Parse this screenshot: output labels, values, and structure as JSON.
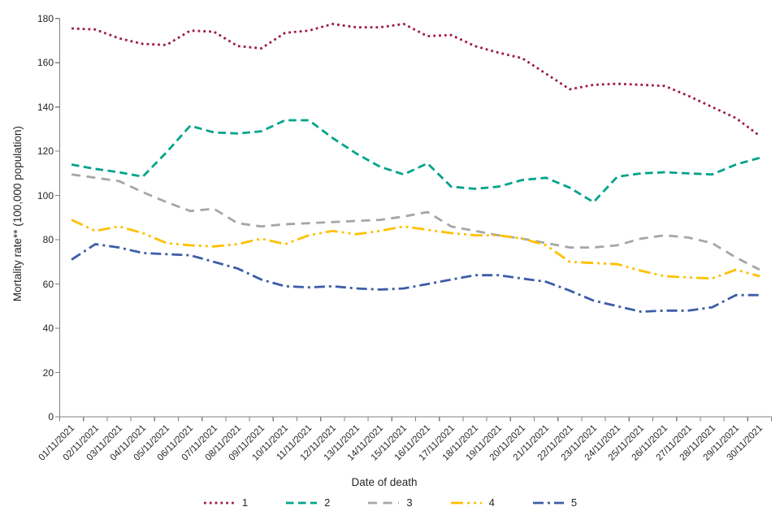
{
  "chart_data": {
    "type": "line",
    "title": "",
    "xlabel": "Date of death",
    "ylabel": "Mortality rate** (100,000 population)",
    "ylim": [
      0,
      180
    ],
    "yticks": [
      0,
      20,
      40,
      60,
      80,
      100,
      120,
      140,
      160,
      180
    ],
    "grid": false,
    "legend_position": "bottom-center",
    "axis_color": "#808080",
    "text_color": "#262626",
    "x": [
      "01/11/2021",
      "02/11/2021",
      "03/11/2021",
      "04/11/2021",
      "05/11/2021",
      "06/11/2021",
      "07/11/2021",
      "08/11/2021",
      "09/11/2021",
      "10/11/2021",
      "11/11/2021",
      "12/11/2021",
      "13/11/2021",
      "14/11/2021",
      "15/11/2021",
      "16/11/2021",
      "17/11/2021",
      "18/11/2021",
      "19/11/2021",
      "20/11/2021",
      "21/11/2021",
      "22/11/2021",
      "23/11/2021",
      "24/11/2021",
      "25/11/2021",
      "26/11/2021",
      "27/11/2021",
      "28/11/2021",
      "29/11/2021",
      "30/11/2021"
    ],
    "series": [
      {
        "name": "1",
        "color": "#9B1B4B",
        "dash": "dot",
        "values": [
          175.5,
          175,
          171,
          168.5,
          168,
          174.5,
          174,
          167.5,
          166.5,
          173.5,
          174.5,
          177.5,
          176,
          176,
          177.5,
          172,
          172.5,
          167.5,
          164.5,
          162,
          155,
          148,
          150,
          150.5,
          150,
          149.5,
          145,
          140,
          135,
          127
        ]
      },
      {
        "name": "2",
        "color": "#00A38B",
        "dash": "dash",
        "values": [
          114,
          112,
          110.5,
          108.5,
          119.5,
          131.5,
          128.5,
          128,
          129,
          134,
          134,
          126,
          119,
          113,
          109.5,
          114.5,
          104,
          103,
          104,
          107,
          108,
          103.5,
          97,
          108.5,
          110,
          110.5,
          110,
          109.5,
          114,
          117
        ]
      },
      {
        "name": "3",
        "color": "#A6A6A6",
        "dash": "dash-long",
        "values": [
          109.5,
          108,
          106.5,
          101.5,
          97,
          93,
          94,
          87.5,
          86,
          87,
          87.5,
          88,
          88.5,
          89,
          90.5,
          92.5,
          86,
          84,
          82,
          80.5,
          78.5,
          76.5,
          76.5,
          77.5,
          80.5,
          82,
          81,
          78.5,
          72,
          66.5
        ]
      },
      {
        "name": "4",
        "color": "#FFC000",
        "dash": "dash-dot-dot",
        "values": [
          89,
          84,
          86,
          83,
          78.5,
          77.5,
          77,
          78,
          80.5,
          78,
          82,
          84,
          82.5,
          84,
          86,
          84.5,
          83,
          82,
          82,
          80.5,
          77.5,
          70,
          69.5,
          69,
          66,
          63.5,
          63,
          62.5,
          66.5,
          63.5
        ]
      },
      {
        "name": "5",
        "color": "#3C5CA8",
        "dash": "dash-dot",
        "values": [
          71,
          78,
          76.5,
          74,
          73.5,
          73,
          70,
          67,
          62,
          59,
          58.5,
          59,
          58,
          57.5,
          58,
          60,
          62,
          64,
          64,
          62.5,
          61,
          57,
          52.5,
          50,
          47.5,
          48,
          48,
          49.5,
          55,
          55
        ]
      }
    ]
  }
}
